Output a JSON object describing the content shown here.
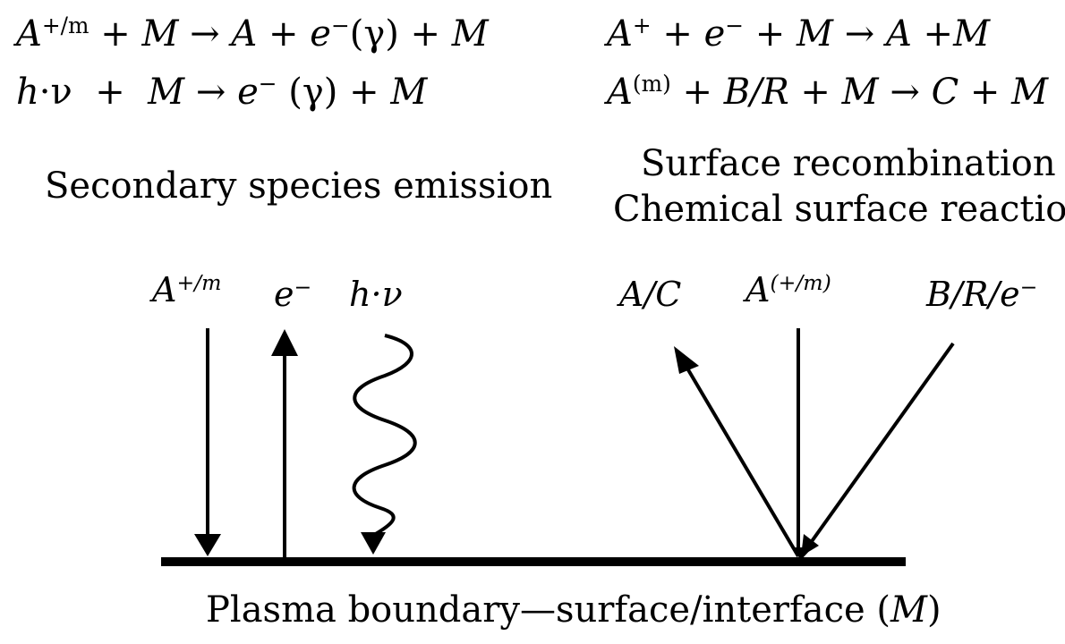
{
  "equations": {
    "left_1": {
      "p1": "A",
      "s1": "+/m",
      "p2": " + ",
      "p3": "M",
      "arrow": " → ",
      "p4": "A",
      "p5": " + ",
      "p6": "e",
      "s2": "−",
      "p7": "(γ) + ",
      "p8": "M"
    },
    "left_2": {
      "p1": "h",
      "p2": "·ν",
      "p3": "  +  ",
      "p4": "M",
      "arrow": " → ",
      "p5": "e",
      "s1": "−",
      "p6": " (γ) + ",
      "p7": "M"
    },
    "right_1": {
      "p1": "A",
      "s1": "+",
      "p2": " + ",
      "p3": "e",
      "s2": "−",
      "p4": " + ",
      "p5": "M",
      "arrow": " → ",
      "p6": "A",
      "p7": " +",
      "p8": "M"
    },
    "right_2": {
      "p1": "A",
      "s1": "(m)",
      "p2": " + ",
      "p3": "B/R",
      "p4": " + ",
      "p5": "M",
      "arrow": " → ",
      "p6": "C",
      "p7": " + ",
      "p8": "M"
    }
  },
  "captions": {
    "secondary": "Secondary species emission",
    "recombination": "Surface recombination",
    "chemical": "Chemical surface reaction",
    "boundary": "Plasma boundary—surface/interface (",
    "boundary_m": "M",
    "boundary_end": ")"
  },
  "labels": {
    "ion": {
      "base": "A",
      "sup": "+/m"
    },
    "electron": {
      "base": "e",
      "sup": "−"
    },
    "photon": {
      "h": "h",
      "nu": "·ν"
    },
    "product": "A/C",
    "incoming": {
      "base": "A",
      "sup": "(+/m)"
    },
    "reactant": {
      "base": "B/R/e",
      "sup": "−"
    }
  }
}
